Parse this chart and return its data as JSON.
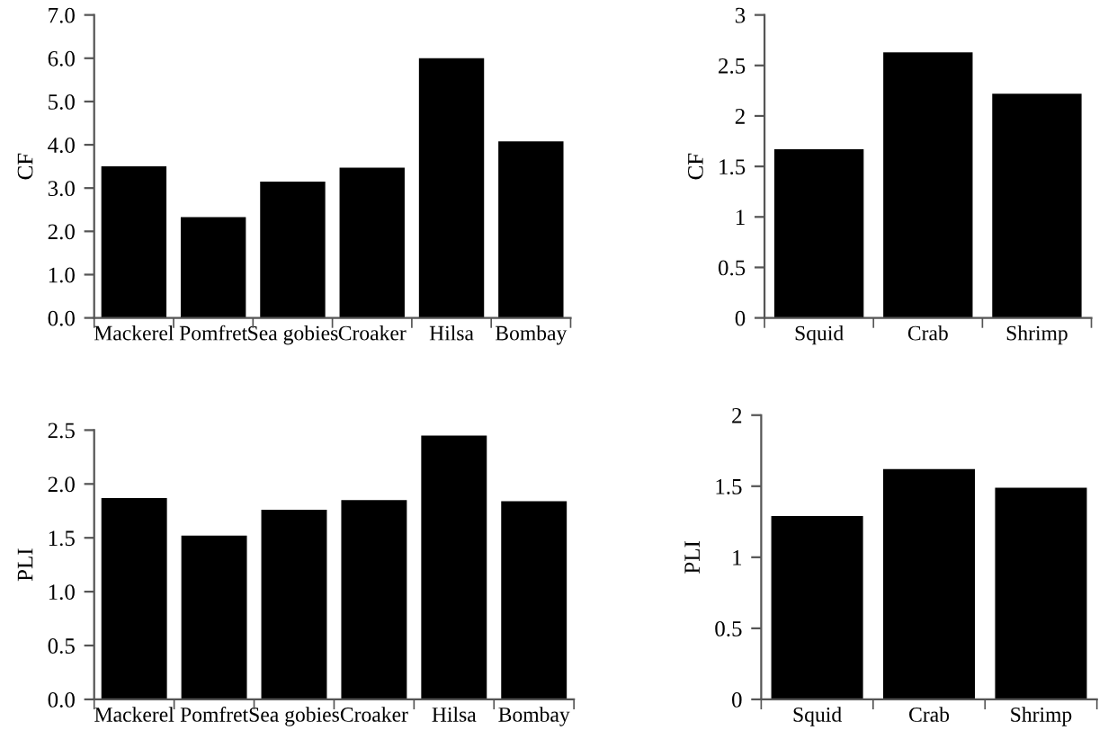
{
  "chart_data": [
    {
      "type": "bar",
      "ylabel": "CF",
      "categories": [
        "Mackerel",
        "Pomfret",
        "Sea gobies",
        "Croaker",
        "Hilsa",
        "Bombay"
      ],
      "values": [
        3.5,
        2.33,
        3.15,
        3.47,
        6.0,
        4.08
      ],
      "color": "#000000",
      "ylim": [
        0,
        7
      ],
      "yticks": [
        {
          "value": 0,
          "label": "0.0"
        },
        {
          "value": 1,
          "label": "1.0"
        },
        {
          "value": 2,
          "label": "2.0"
        },
        {
          "value": 3,
          "label": "3.0"
        },
        {
          "value": 4,
          "label": "4.0"
        },
        {
          "value": 5,
          "label": "5.0"
        },
        {
          "value": 6,
          "label": "6.0"
        },
        {
          "value": 7,
          "label": "7.0"
        }
      ],
      "grid": false
    },
    {
      "type": "bar",
      "ylabel": "CF",
      "categories": [
        "Squid",
        "Crab",
        "Shrimp"
      ],
      "values": [
        1.67,
        2.63,
        2.22
      ],
      "color": "#000000",
      "ylim": [
        0,
        3
      ],
      "yticks": [
        0,
        0.5,
        1,
        1.5,
        2,
        2.5,
        3
      ],
      "grid": false
    },
    {
      "type": "bar",
      "ylabel": "PLI",
      "categories": [
        "Mackerel",
        "Pomfret",
        "Sea gobies",
        "Croaker",
        "Hilsa",
        "Bombay"
      ],
      "values": [
        1.87,
        1.52,
        1.76,
        1.85,
        2.45,
        1.84
      ],
      "color": "#000000",
      "ylim": [
        0,
        2.5
      ],
      "yticks": [
        {
          "value": 0,
          "label": "0.0"
        },
        {
          "value": 0.5,
          "label": "0.5"
        },
        {
          "value": 1,
          "label": "1.0"
        },
        {
          "value": 1.5,
          "label": "1.5"
        },
        {
          "value": 2,
          "label": "2.0"
        },
        {
          "value": 2.5,
          "label": "2.5"
        }
      ],
      "grid": false
    },
    {
      "type": "bar",
      "ylabel": "PLI",
      "categories": [
        "Squid",
        "Crab",
        "Shrimp"
      ],
      "values": [
        1.29,
        1.62,
        1.49
      ],
      "color": "#000000",
      "ylim": [
        0,
        2
      ],
      "yticks": [
        0,
        0.5,
        1,
        1.5,
        2
      ],
      "grid": false
    }
  ]
}
